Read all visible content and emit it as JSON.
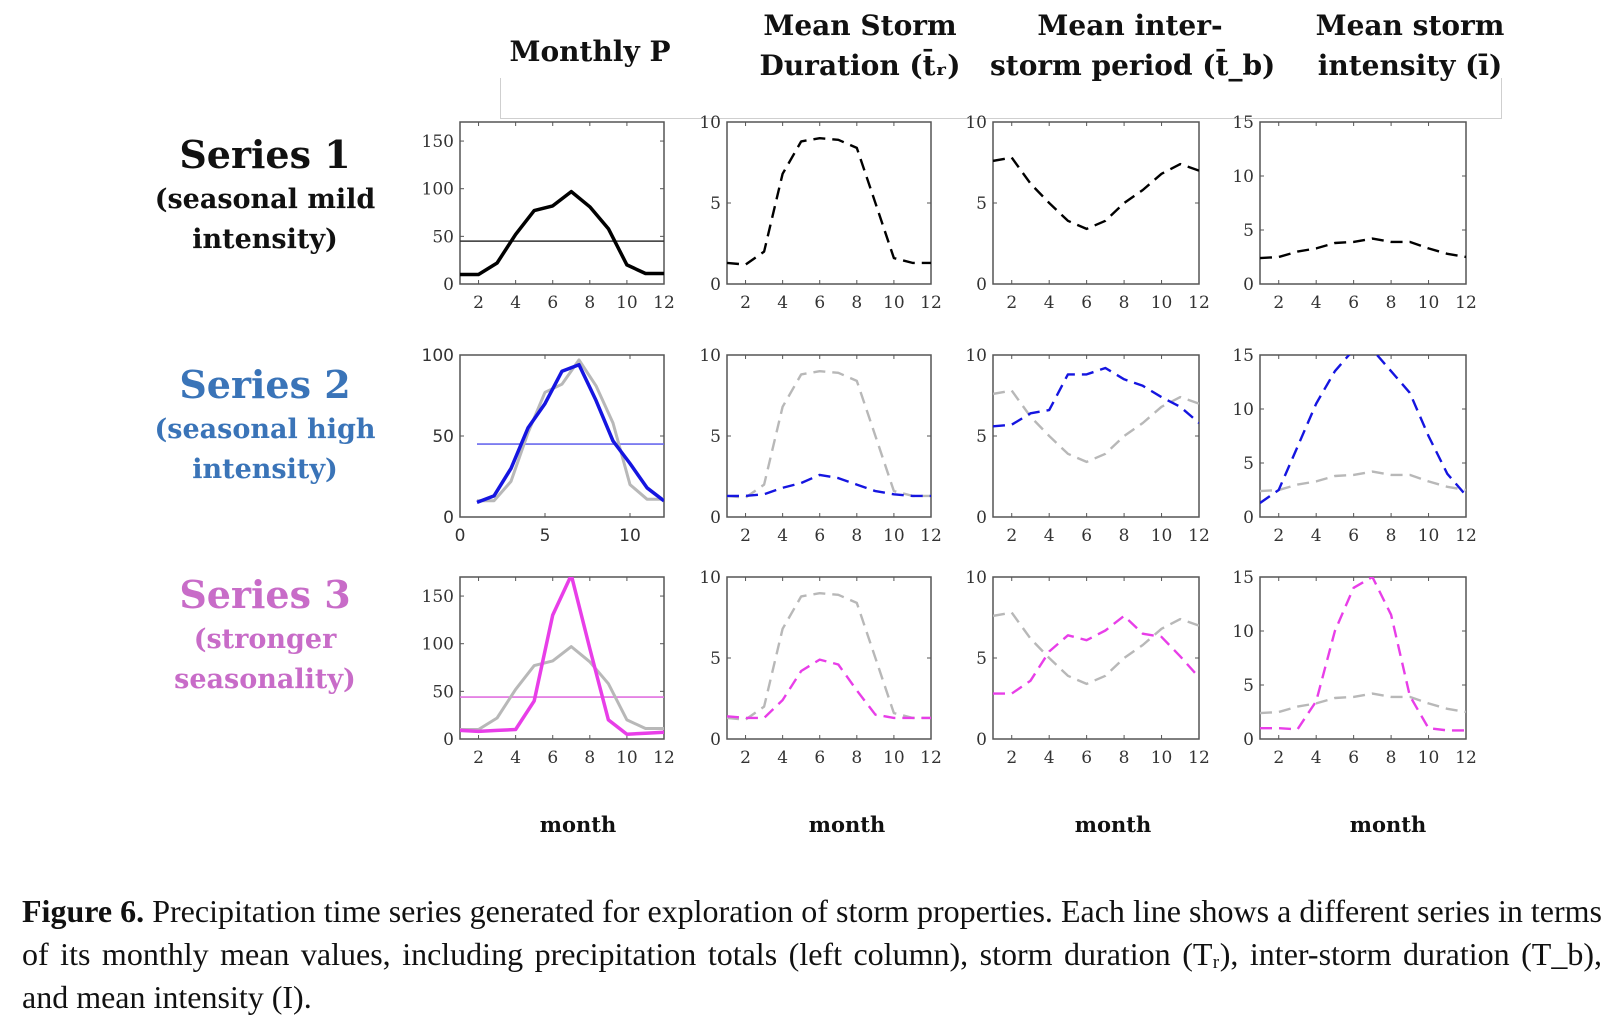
{
  "figure": {
    "column_titles": [
      {
        "line1": "Monthly P",
        "line2": ""
      },
      {
        "line1": "Mean Storm",
        "line2": "Duration (t̄ᵣ)"
      },
      {
        "line1": "Mean inter-",
        "line2": "storm period (t̄_b)"
      },
      {
        "line1": "Mean storm",
        "line2": "intensity (ī)"
      }
    ],
    "row_labels": [
      {
        "title": "Series 1",
        "sub1": "(seasonal mild",
        "sub2": "intensity)",
        "color": "#111111"
      },
      {
        "title": "Series 2",
        "sub1": "(seasonal high",
        "sub2": "intensity)",
        "color": "#3a74b8"
      },
      {
        "title": "Series 3",
        "sub1": "(stronger",
        "sub2": "seasonality)",
        "color": "#c86cc8"
      }
    ],
    "xlabels": [
      "month",
      "month",
      "month",
      "month"
    ],
    "caption": {
      "label": "Figure 6.",
      "text": " Precipitation time series generated for exploration of storm properties. Each line shows a different series in terms of its monthly mean values, including precipitation totals (left column), storm duration (Tᵣ), inter-storm duration (T_b), and mean intensity (I)."
    }
  },
  "chart_data": [
    {
      "type": "line",
      "row": 1,
      "column": "Monthly P",
      "xlim": [
        1,
        12
      ],
      "ylim": [
        0,
        170
      ],
      "xticks": [
        2,
        4,
        6,
        8,
        10,
        12
      ],
      "yticks": [
        0,
        50,
        100,
        150
      ],
      "x": [
        1,
        2,
        3,
        4,
        5,
        6,
        7,
        8,
        9,
        10,
        11,
        12
      ],
      "series": [
        {
          "name": "Series 1",
          "color": "#000000",
          "style": "solid",
          "values": [
            10,
            10,
            22,
            52,
            77,
            82,
            97,
            81,
            58,
            20,
            11,
            11
          ]
        }
      ],
      "hlines": [
        {
          "name": "Series 1 mean",
          "color": "#333333",
          "value": 45
        }
      ]
    },
    {
      "type": "line",
      "row": 1,
      "column": "Mean Storm Duration",
      "xlim": [
        1,
        12
      ],
      "ylim": [
        0,
        10
      ],
      "xticks": [
        2,
        4,
        6,
        8,
        10,
        12
      ],
      "yticks": [
        0,
        5,
        10
      ],
      "x": [
        1,
        2,
        3,
        4,
        5,
        6,
        7,
        8,
        9,
        10,
        11,
        12
      ],
      "series": [
        {
          "name": "Series 1",
          "color": "#000000",
          "style": "dashed",
          "values": [
            1.3,
            1.2,
            2.0,
            6.8,
            8.8,
            9.0,
            8.9,
            8.4,
            5.0,
            1.6,
            1.3,
            1.3
          ]
        }
      ]
    },
    {
      "type": "line",
      "row": 1,
      "column": "Mean inter-storm period",
      "xlim": [
        1,
        12
      ],
      "ylim": [
        0,
        10
      ],
      "xticks": [
        2,
        4,
        6,
        8,
        10,
        12
      ],
      "yticks": [
        0,
        5,
        10
      ],
      "x": [
        1,
        2,
        3,
        4,
        5,
        6,
        7,
        8,
        9,
        10,
        11,
        12
      ],
      "series": [
        {
          "name": "Series 1",
          "color": "#000000",
          "style": "dashed",
          "values": [
            7.6,
            7.8,
            6.2,
            5.0,
            3.9,
            3.4,
            3.9,
            5.0,
            5.8,
            6.8,
            7.4,
            7.0
          ]
        }
      ]
    },
    {
      "type": "line",
      "row": 1,
      "column": "Mean storm intensity",
      "xlim": [
        1,
        12
      ],
      "ylim": [
        0,
        15
      ],
      "xticks": [
        2,
        4,
        6,
        8,
        10,
        12
      ],
      "yticks": [
        0,
        5,
        10,
        15
      ],
      "x": [
        1,
        2,
        3,
        4,
        5,
        6,
        7,
        8,
        9,
        10,
        11,
        12
      ],
      "series": [
        {
          "name": "Series 1",
          "color": "#000000",
          "style": "dashed",
          "values": [
            2.4,
            2.5,
            3.0,
            3.3,
            3.8,
            3.9,
            4.2,
            3.9,
            3.9,
            3.3,
            2.8,
            2.5
          ]
        }
      ]
    },
    {
      "type": "line",
      "row": 2,
      "column": "Monthly P",
      "xlim": [
        0,
        12
      ],
      "ylim": [
        0,
        100
      ],
      "xticks": [
        0,
        5,
        10
      ],
      "yticks": [
        0,
        50,
        100
      ],
      "x": [
        1,
        2,
        3,
        4,
        5,
        6,
        7,
        8,
        9,
        10,
        11,
        12
      ],
      "series": [
        {
          "name": "Series 1 (reference)",
          "color": "#b8b8b8",
          "style": "solid",
          "values": [
            10,
            10,
            22,
            52,
            77,
            82,
            97,
            81,
            58,
            20,
            11,
            11
          ]
        },
        {
          "name": "Series 2",
          "color": "#1515e0",
          "style": "solid",
          "values": [
            9,
            13,
            30,
            55,
            70,
            90,
            94,
            72,
            47,
            33,
            18,
            10
          ]
        }
      ],
      "hlines": [
        {
          "name": "Series 2 mean",
          "color": "#6a6aee",
          "value": 45,
          "from_x": 1
        }
      ]
    },
    {
      "type": "line",
      "row": 2,
      "column": "Mean Storm Duration",
      "xlim": [
        1,
        12
      ],
      "ylim": [
        0,
        10
      ],
      "xticks": [
        2,
        4,
        6,
        8,
        10,
        12
      ],
      "yticks": [
        0,
        5,
        10
      ],
      "x": [
        1,
        2,
        3,
        4,
        5,
        6,
        7,
        8,
        9,
        10,
        11,
        12
      ],
      "series": [
        {
          "name": "Series 1 (reference)",
          "color": "#b8b8b8",
          "style": "dashed",
          "values": [
            1.3,
            1.2,
            2.0,
            6.8,
            8.8,
            9.0,
            8.9,
            8.4,
            5.0,
            1.6,
            1.3,
            1.3
          ]
        },
        {
          "name": "Series 2",
          "color": "#1515e0",
          "style": "dashed",
          "values": [
            1.3,
            1.3,
            1.4,
            1.8,
            2.1,
            2.6,
            2.4,
            2.0,
            1.6,
            1.4,
            1.3,
            1.3
          ]
        }
      ]
    },
    {
      "type": "line",
      "row": 2,
      "column": "Mean inter-storm period",
      "xlim": [
        1,
        12
      ],
      "ylim": [
        0,
        10
      ],
      "xticks": [
        2,
        4,
        6,
        8,
        10,
        12
      ],
      "yticks": [
        0,
        5,
        10
      ],
      "x": [
        1,
        2,
        3,
        4,
        5,
        6,
        7,
        8,
        9,
        10,
        11,
        12
      ],
      "series": [
        {
          "name": "Series 1 (reference)",
          "color": "#b8b8b8",
          "style": "dashed",
          "values": [
            7.6,
            7.8,
            6.2,
            5.0,
            3.9,
            3.4,
            3.9,
            5.0,
            5.8,
            6.8,
            7.4,
            7.0
          ]
        },
        {
          "name": "Series 2",
          "color": "#1515e0",
          "style": "dashed",
          "values": [
            5.6,
            5.7,
            6.4,
            6.6,
            8.8,
            8.8,
            9.2,
            8.5,
            8.1,
            7.4,
            6.8,
            5.8
          ]
        }
      ]
    },
    {
      "type": "line",
      "row": 2,
      "column": "Mean storm intensity",
      "xlim": [
        1,
        12
      ],
      "ylim": [
        0,
        15
      ],
      "xticks": [
        2,
        4,
        6,
        8,
        10,
        12
      ],
      "yticks": [
        0,
        5,
        10,
        15
      ],
      "x": [
        1,
        2,
        3,
        4,
        5,
        6,
        7,
        8,
        9,
        10,
        11,
        12
      ],
      "series": [
        {
          "name": "Series 1 (reference)",
          "color": "#b8b8b8",
          "style": "dashed",
          "values": [
            2.4,
            2.5,
            3.0,
            3.3,
            3.8,
            3.9,
            4.2,
            3.9,
            3.9,
            3.3,
            2.8,
            2.5
          ]
        },
        {
          "name": "Series 2",
          "color": "#1515e0",
          "style": "dashed",
          "values": [
            1.3,
            2.5,
            6.5,
            10.5,
            13.5,
            15.5,
            15.5,
            13.5,
            11.5,
            7.5,
            4.0,
            2.0
          ]
        }
      ]
    },
    {
      "type": "line",
      "row": 3,
      "column": "Monthly P",
      "xlim": [
        1,
        12
      ],
      "ylim": [
        0,
        170
      ],
      "xticks": [
        2,
        4,
        6,
        8,
        10,
        12
      ],
      "yticks": [
        0,
        50,
        100,
        150
      ],
      "x": [
        1,
        2,
        3,
        4,
        5,
        6,
        7,
        8,
        9,
        10,
        11,
        12
      ],
      "series": [
        {
          "name": "Series 1 (reference)",
          "color": "#b8b8b8",
          "style": "solid",
          "values": [
            10,
            10,
            22,
            52,
            77,
            82,
            97,
            81,
            58,
            20,
            11,
            11
          ]
        },
        {
          "name": "Series 3",
          "color": "#e83ee8",
          "style": "solid",
          "values": [
            9,
            8,
            9,
            10,
            40,
            130,
            172,
            95,
            20,
            5,
            6,
            7
          ]
        }
      ],
      "hlines": [
        {
          "name": "Series 3 mean",
          "color": "#e070e0",
          "value": 44
        }
      ]
    },
    {
      "type": "line",
      "row": 3,
      "column": "Mean Storm Duration",
      "xlim": [
        1,
        12
      ],
      "ylim": [
        0,
        10
      ],
      "xticks": [
        2,
        4,
        6,
        8,
        10,
        12
      ],
      "yticks": [
        0,
        5,
        10
      ],
      "x": [
        1,
        2,
        3,
        4,
        5,
        6,
        7,
        8,
        9,
        10,
        11,
        12
      ],
      "series": [
        {
          "name": "Series 1 (reference)",
          "color": "#b8b8b8",
          "style": "dashed",
          "values": [
            1.3,
            1.2,
            2.0,
            6.8,
            8.8,
            9.0,
            8.9,
            8.4,
            5.0,
            1.6,
            1.3,
            1.3
          ]
        },
        {
          "name": "Series 3",
          "color": "#e83ee8",
          "style": "dashed",
          "values": [
            1.4,
            1.3,
            1.3,
            2.4,
            4.2,
            4.9,
            4.6,
            3.0,
            1.5,
            1.3,
            1.3,
            1.3
          ]
        }
      ]
    },
    {
      "type": "line",
      "row": 3,
      "column": "Mean inter-storm period",
      "xlim": [
        1,
        12
      ],
      "ylim": [
        0,
        10
      ],
      "xticks": [
        2,
        4,
        6,
        8,
        10,
        12
      ],
      "yticks": [
        0,
        5,
        10
      ],
      "x": [
        1,
        2,
        3,
        4,
        5,
        6,
        7,
        8,
        9,
        10,
        11,
        12
      ],
      "series": [
        {
          "name": "Series 1 (reference)",
          "color": "#b8b8b8",
          "style": "dashed",
          "values": [
            7.6,
            7.8,
            6.2,
            5.0,
            3.9,
            3.4,
            3.9,
            5.0,
            5.8,
            6.8,
            7.4,
            7.0
          ]
        },
        {
          "name": "Series 3",
          "color": "#e83ee8",
          "style": "dashed",
          "values": [
            2.8,
            2.8,
            3.6,
            5.4,
            6.4,
            6.1,
            6.7,
            7.6,
            6.5,
            6.3,
            5.1,
            3.8
          ]
        }
      ]
    },
    {
      "type": "line",
      "row": 3,
      "column": "Mean storm intensity",
      "xlim": [
        1,
        12
      ],
      "ylim": [
        0,
        15
      ],
      "xticks": [
        2,
        4,
        6,
        8,
        10,
        12
      ],
      "yticks": [
        0,
        5,
        10,
        15
      ],
      "x": [
        1,
        2,
        3,
        4,
        5,
        6,
        7,
        8,
        9,
        10,
        11,
        12
      ],
      "series": [
        {
          "name": "Series 1 (reference)",
          "color": "#b8b8b8",
          "style": "dashed",
          "values": [
            2.4,
            2.5,
            3.0,
            3.3,
            3.8,
            3.9,
            4.2,
            3.9,
            3.9,
            3.3,
            2.8,
            2.5
          ]
        },
        {
          "name": "Series 3",
          "color": "#e83ee8",
          "style": "dashed",
          "values": [
            1.0,
            1.0,
            0.9,
            3.5,
            10.0,
            14.0,
            15.0,
            11.5,
            4.0,
            1.0,
            0.8,
            0.8
          ]
        }
      ]
    }
  ]
}
